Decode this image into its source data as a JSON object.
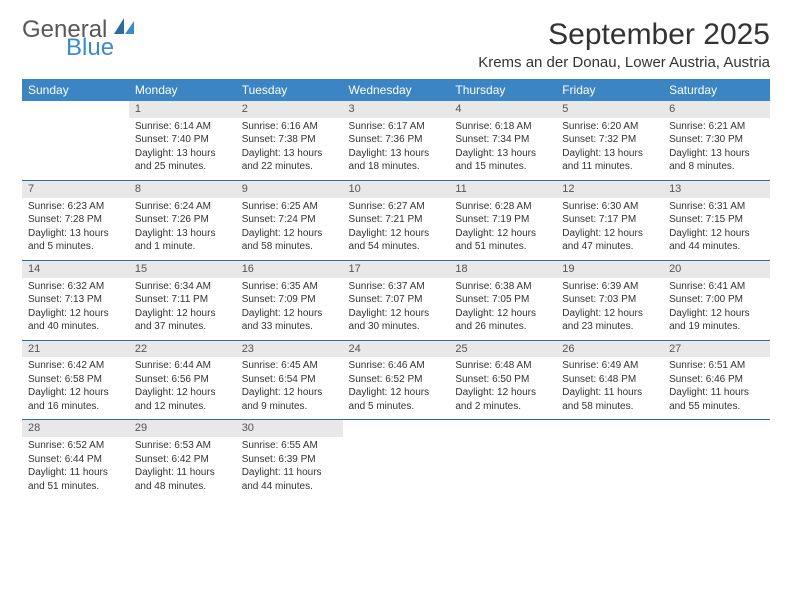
{
  "brand": {
    "text1": "General",
    "text2": "Blue",
    "color1": "#58585a",
    "color2": "#3a8cc9"
  },
  "title": "September 2025",
  "location": "Krems an der Donau, Lower Austria, Austria",
  "header_bg": "#3b85c4",
  "daynum_bg": "#e8e8e8",
  "sep_color": "#2f6aa0",
  "days_of_week": [
    "Sunday",
    "Monday",
    "Tuesday",
    "Wednesday",
    "Thursday",
    "Friday",
    "Saturday"
  ],
  "weeks": [
    [
      null,
      {
        "n": "1",
        "sr": "Sunrise: 6:14 AM",
        "ss": "Sunset: 7:40 PM",
        "dl": "Daylight: 13 hours and 25 minutes."
      },
      {
        "n": "2",
        "sr": "Sunrise: 6:16 AM",
        "ss": "Sunset: 7:38 PM",
        "dl": "Daylight: 13 hours and 22 minutes."
      },
      {
        "n": "3",
        "sr": "Sunrise: 6:17 AM",
        "ss": "Sunset: 7:36 PM",
        "dl": "Daylight: 13 hours and 18 minutes."
      },
      {
        "n": "4",
        "sr": "Sunrise: 6:18 AM",
        "ss": "Sunset: 7:34 PM",
        "dl": "Daylight: 13 hours and 15 minutes."
      },
      {
        "n": "5",
        "sr": "Sunrise: 6:20 AM",
        "ss": "Sunset: 7:32 PM",
        "dl": "Daylight: 13 hours and 11 minutes."
      },
      {
        "n": "6",
        "sr": "Sunrise: 6:21 AM",
        "ss": "Sunset: 7:30 PM",
        "dl": "Daylight: 13 hours and 8 minutes."
      }
    ],
    [
      {
        "n": "7",
        "sr": "Sunrise: 6:23 AM",
        "ss": "Sunset: 7:28 PM",
        "dl": "Daylight: 13 hours and 5 minutes."
      },
      {
        "n": "8",
        "sr": "Sunrise: 6:24 AM",
        "ss": "Sunset: 7:26 PM",
        "dl": "Daylight: 13 hours and 1 minute."
      },
      {
        "n": "9",
        "sr": "Sunrise: 6:25 AM",
        "ss": "Sunset: 7:24 PM",
        "dl": "Daylight: 12 hours and 58 minutes."
      },
      {
        "n": "10",
        "sr": "Sunrise: 6:27 AM",
        "ss": "Sunset: 7:21 PM",
        "dl": "Daylight: 12 hours and 54 minutes."
      },
      {
        "n": "11",
        "sr": "Sunrise: 6:28 AM",
        "ss": "Sunset: 7:19 PM",
        "dl": "Daylight: 12 hours and 51 minutes."
      },
      {
        "n": "12",
        "sr": "Sunrise: 6:30 AM",
        "ss": "Sunset: 7:17 PM",
        "dl": "Daylight: 12 hours and 47 minutes."
      },
      {
        "n": "13",
        "sr": "Sunrise: 6:31 AM",
        "ss": "Sunset: 7:15 PM",
        "dl": "Daylight: 12 hours and 44 minutes."
      }
    ],
    [
      {
        "n": "14",
        "sr": "Sunrise: 6:32 AM",
        "ss": "Sunset: 7:13 PM",
        "dl": "Daylight: 12 hours and 40 minutes."
      },
      {
        "n": "15",
        "sr": "Sunrise: 6:34 AM",
        "ss": "Sunset: 7:11 PM",
        "dl": "Daylight: 12 hours and 37 minutes."
      },
      {
        "n": "16",
        "sr": "Sunrise: 6:35 AM",
        "ss": "Sunset: 7:09 PM",
        "dl": "Daylight: 12 hours and 33 minutes."
      },
      {
        "n": "17",
        "sr": "Sunrise: 6:37 AM",
        "ss": "Sunset: 7:07 PM",
        "dl": "Daylight: 12 hours and 30 minutes."
      },
      {
        "n": "18",
        "sr": "Sunrise: 6:38 AM",
        "ss": "Sunset: 7:05 PM",
        "dl": "Daylight: 12 hours and 26 minutes."
      },
      {
        "n": "19",
        "sr": "Sunrise: 6:39 AM",
        "ss": "Sunset: 7:03 PM",
        "dl": "Daylight: 12 hours and 23 minutes."
      },
      {
        "n": "20",
        "sr": "Sunrise: 6:41 AM",
        "ss": "Sunset: 7:00 PM",
        "dl": "Daylight: 12 hours and 19 minutes."
      }
    ],
    [
      {
        "n": "21",
        "sr": "Sunrise: 6:42 AM",
        "ss": "Sunset: 6:58 PM",
        "dl": "Daylight: 12 hours and 16 minutes."
      },
      {
        "n": "22",
        "sr": "Sunrise: 6:44 AM",
        "ss": "Sunset: 6:56 PM",
        "dl": "Daylight: 12 hours and 12 minutes."
      },
      {
        "n": "23",
        "sr": "Sunrise: 6:45 AM",
        "ss": "Sunset: 6:54 PM",
        "dl": "Daylight: 12 hours and 9 minutes."
      },
      {
        "n": "24",
        "sr": "Sunrise: 6:46 AM",
        "ss": "Sunset: 6:52 PM",
        "dl": "Daylight: 12 hours and 5 minutes."
      },
      {
        "n": "25",
        "sr": "Sunrise: 6:48 AM",
        "ss": "Sunset: 6:50 PM",
        "dl": "Daylight: 12 hours and 2 minutes."
      },
      {
        "n": "26",
        "sr": "Sunrise: 6:49 AM",
        "ss": "Sunset: 6:48 PM",
        "dl": "Daylight: 11 hours and 58 minutes."
      },
      {
        "n": "27",
        "sr": "Sunrise: 6:51 AM",
        "ss": "Sunset: 6:46 PM",
        "dl": "Daylight: 11 hours and 55 minutes."
      }
    ],
    [
      {
        "n": "28",
        "sr": "Sunrise: 6:52 AM",
        "ss": "Sunset: 6:44 PM",
        "dl": "Daylight: 11 hours and 51 minutes."
      },
      {
        "n": "29",
        "sr": "Sunrise: 6:53 AM",
        "ss": "Sunset: 6:42 PM",
        "dl": "Daylight: 11 hours and 48 minutes."
      },
      {
        "n": "30",
        "sr": "Sunrise: 6:55 AM",
        "ss": "Sunset: 6:39 PM",
        "dl": "Daylight: 11 hours and 44 minutes."
      },
      null,
      null,
      null,
      null
    ]
  ]
}
